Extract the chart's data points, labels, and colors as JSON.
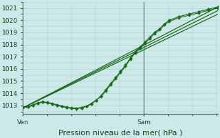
{
  "background_color": "#cce8e8",
  "plot_bg_color": "#cce8e8",
  "grid_color": "#aacccc",
  "line_color": "#1a6a1a",
  "marker_color": "#1a6a1a",
  "ylim": [
    1012.3,
    1021.5
  ],
  "yticks": [
    1013,
    1014,
    1015,
    1016,
    1017,
    1018,
    1019,
    1020,
    1021
  ],
  "xlabel": "Pression niveau de la mer( hPa )",
  "xlabel_fontsize": 8,
  "tick_fontsize": 6.5,
  "xtick_labels": [
    "Ven",
    "Sam"
  ],
  "xtick_positions": [
    0.0,
    0.62
  ],
  "vline_x": 0.62,
  "series": {
    "straight_lines": [
      [
        0.0,
        1012.8,
        1.0,
        1021.1
      ],
      [
        0.0,
        1012.8,
        1.0,
        1020.8
      ],
      [
        0.0,
        1012.8,
        1.0,
        1020.5
      ]
    ],
    "wiggly": {
      "x": [
        0.0,
        0.025,
        0.05,
        0.075,
        0.1,
        0.125,
        0.15,
        0.175,
        0.2,
        0.225,
        0.25,
        0.275,
        0.3,
        0.325,
        0.35,
        0.375,
        0.4,
        0.425,
        0.45,
        0.475,
        0.5,
        0.525,
        0.55,
        0.575,
        0.6,
        0.625,
        0.65,
        0.675,
        0.7,
        0.725,
        0.75,
        0.8,
        0.85,
        0.9,
        0.95,
        1.0
      ],
      "y": [
        1012.8,
        1012.85,
        1013.0,
        1013.15,
        1013.25,
        1013.2,
        1013.1,
        1013.0,
        1012.9,
        1012.8,
        1012.75,
        1012.72,
        1012.78,
        1012.9,
        1013.1,
        1013.4,
        1013.8,
        1014.3,
        1014.8,
        1015.3,
        1015.8,
        1016.3,
        1016.9,
        1017.4,
        1017.8,
        1018.2,
        1018.6,
        1019.0,
        1019.3,
        1019.7,
        1020.0,
        1020.3,
        1020.5,
        1020.7,
        1020.9,
        1021.1
      ]
    }
  }
}
